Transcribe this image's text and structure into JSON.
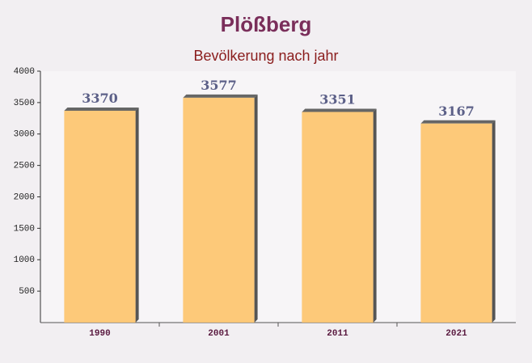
{
  "chart_data": {
    "type": "bar",
    "title": "Plößberg",
    "subtitle": "Bevölkerung nach jahr",
    "categories": [
      "1990",
      "2001",
      "2011",
      "2021"
    ],
    "values": [
      3370,
      3577,
      3351,
      3167
    ],
    "color": "#fdc46a",
    "ylim": [
      0,
      4000
    ],
    "yticks": [
      500,
      1000,
      1500,
      2000,
      2500,
      3000,
      3500,
      4000
    ]
  }
}
